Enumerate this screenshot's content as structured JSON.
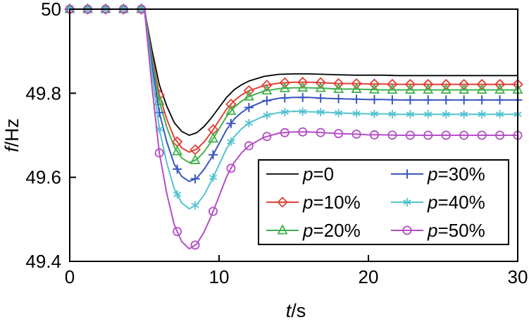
{
  "figure": {
    "background": "#ffffff",
    "frame_color": "#000000"
  },
  "chart_data": {
    "type": "line",
    "title": "",
    "xlabel": "t/s",
    "ylabel": "f/Hz",
    "xlim": [
      0,
      30
    ],
    "ylim": [
      49.4,
      50
    ],
    "xticks": [
      0,
      10,
      20,
      30
    ],
    "xtick_labels": [
      "0",
      "10",
      "20",
      "30"
    ],
    "yticks": [
      49.4,
      49.6,
      49.8,
      50
    ],
    "ytick_labels": [
      "49.4",
      "49.6",
      "49.8",
      "50"
    ],
    "grid": false,
    "legend_position": "lower right",
    "legend_columns": 2,
    "marker_x": [
      0,
      1.2,
      2.4,
      3.6,
      4.8,
      6,
      7.2,
      8.4,
      9.6,
      10.8,
      12,
      13.2,
      14.4,
      15.6,
      16.8,
      18,
      19.2,
      20.4,
      21.6,
      22.8,
      24,
      25.2,
      26.4,
      27.6,
      28.8,
      30
    ],
    "x": [
      0,
      1,
      2,
      3,
      4,
      5,
      5.5,
      6,
      6.5,
      7,
      7.5,
      8,
      8.5,
      9,
      9.5,
      10,
      10.5,
      11,
      11.5,
      12,
      13,
      14,
      15,
      16,
      17,
      18,
      19,
      20,
      21,
      22,
      23,
      24,
      25,
      26,
      27,
      28,
      29,
      30
    ],
    "series": [
      {
        "name": "p=0",
        "color": "#000000",
        "marker": "none",
        "y": [
          50,
          50,
          50,
          50,
          50,
          50,
          49.904,
          49.82,
          49.769,
          49.73,
          49.709,
          49.7,
          49.706,
          49.721,
          49.742,
          49.766,
          49.79,
          49.808,
          49.82,
          49.829,
          49.84,
          49.845,
          49.846,
          49.846,
          49.845,
          49.844,
          49.843,
          49.843,
          49.843,
          49.842,
          49.842,
          49.842,
          49.842,
          49.842,
          49.842,
          49.842,
          49.842,
          49.842
        ]
      },
      {
        "name": "p=10%",
        "color": "#e04138",
        "marker": "diamond",
        "y": [
          50,
          50,
          50,
          50,
          50,
          50,
          49.891,
          49.796,
          49.738,
          49.694,
          49.67,
          49.66,
          49.667,
          49.684,
          49.708,
          49.735,
          49.762,
          49.782,
          49.796,
          49.806,
          49.818,
          49.824,
          49.826,
          49.826,
          49.825,
          49.823,
          49.823,
          49.822,
          49.822,
          49.821,
          49.821,
          49.821,
          49.821,
          49.821,
          49.821,
          49.821,
          49.821,
          49.821
        ]
      },
      {
        "name": "p=20%",
        "color": "#3fb24a",
        "marker": "triangle",
        "y": [
          50,
          50,
          50,
          50,
          50,
          50,
          49.883,
          49.781,
          49.719,
          49.672,
          49.646,
          49.635,
          49.642,
          49.661,
          49.686,
          49.715,
          49.745,
          49.766,
          49.781,
          49.792,
          49.805,
          49.811,
          49.813,
          49.813,
          49.812,
          49.81,
          49.81,
          49.809,
          49.808,
          49.808,
          49.808,
          49.808,
          49.808,
          49.808,
          49.808,
          49.808,
          49.808,
          49.808
        ]
      },
      {
        "name": "p=30%",
        "color": "#3a57c0",
        "marker": "plus",
        "y": [
          50,
          50,
          50,
          50,
          50,
          50,
          49.869,
          49.754,
          49.684,
          49.631,
          49.602,
          49.59,
          49.598,
          49.619,
          49.647,
          49.68,
          49.713,
          49.738,
          49.754,
          49.766,
          49.781,
          49.788,
          49.79,
          49.79,
          49.788,
          49.787,
          49.786,
          49.785,
          49.785,
          49.784,
          49.784,
          49.784,
          49.784,
          49.784,
          49.784,
          49.784,
          49.784,
          49.784
        ]
      },
      {
        "name": "p=40%",
        "color": "#54c3cf",
        "marker": "asterisk",
        "y": [
          50,
          50,
          50,
          50,
          50,
          50,
          49.848,
          49.715,
          49.634,
          49.573,
          49.539,
          49.525,
          49.535,
          49.558,
          49.592,
          49.63,
          49.668,
          49.696,
          49.715,
          49.729,
          49.746,
          49.754,
          49.757,
          49.756,
          49.755,
          49.753,
          49.752,
          49.751,
          49.751,
          49.75,
          49.75,
          49.75,
          49.75,
          49.75,
          49.75,
          49.75,
          49.75,
          49.75
        ]
      },
      {
        "name": "p=50%",
        "color": "#b44ec6",
        "marker": "circle",
        "y": [
          50,
          50,
          50,
          50,
          50,
          50,
          49.818,
          49.658,
          49.561,
          49.487,
          49.447,
          49.43,
          49.441,
          49.47,
          49.51,
          49.555,
          49.601,
          49.635,
          49.658,
          49.675,
          49.695,
          49.705,
          49.708,
          49.708,
          49.706,
          49.704,
          49.703,
          49.701,
          49.701,
          49.7,
          49.7,
          49.7,
          49.7,
          49.7,
          49.7,
          49.7,
          49.7,
          49.7
        ]
      }
    ]
  }
}
